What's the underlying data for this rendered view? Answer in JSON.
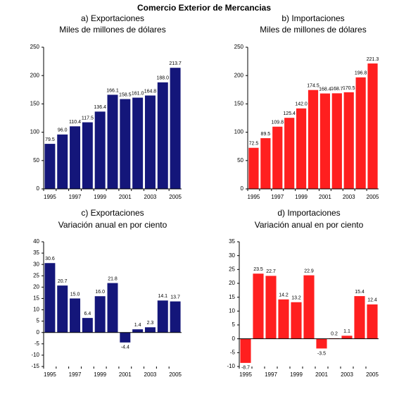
{
  "title": "Comercio Exterior de Mercancias",
  "chart_data": [
    {
      "type": "bar",
      "title": "a) Exportaciones",
      "subtitle": "Miles de millones de dólares",
      "categories": [
        "1995",
        null,
        "1997",
        null,
        "1999",
        null,
        "2001",
        null,
        "2003",
        null,
        "2005"
      ],
      "values": [
        79.5,
        96.0,
        110.4,
        117.5,
        136.4,
        166.1,
        158.5,
        161.0,
        164.8,
        188.0,
        213.7
      ],
      "value_labels": [
        "79.5",
        "96.0",
        "110.4",
        "117.5",
        "136.4",
        "166.1",
        "158.5",
        "161.0",
        "164.8",
        "188.0",
        "213.7"
      ],
      "color": "#14167a",
      "ylim": [
        0,
        250
      ],
      "yticks": [
        0,
        50,
        100,
        150,
        200,
        250
      ]
    },
    {
      "type": "bar",
      "title": "b) Importaciones",
      "subtitle": "Miles de millones de dólares",
      "categories": [
        "1995",
        null,
        "1997",
        null,
        "1999",
        null,
        "2001",
        null,
        "2003",
        null,
        "2005"
      ],
      "values": [
        72.5,
        89.5,
        109.8,
        125.4,
        142.0,
        174.5,
        168.4,
        168.7,
        170.5,
        196.8,
        221.3
      ],
      "value_labels": [
        "72.5",
        "89.5",
        "109.8",
        "125.4",
        "142.0",
        "174.5",
        "168.4",
        "168.7",
        "170.5",
        "196.8",
        "221.3"
      ],
      "color": "#ff1f1f",
      "ylim": [
        0,
        250
      ],
      "yticks": [
        0,
        50,
        100,
        150,
        200,
        250
      ]
    },
    {
      "type": "bar",
      "title": "c) Exportaciones",
      "subtitle": "Variación anual en por ciento",
      "categories": [
        "1995",
        null,
        "1997",
        null,
        "1999",
        null,
        "2001",
        null,
        "2003",
        null,
        "2005"
      ],
      "values": [
        30.6,
        20.7,
        15.0,
        6.4,
        16.0,
        21.8,
        -4.4,
        1.4,
        2.3,
        14.1,
        13.7
      ],
      "value_labels": [
        "30.6",
        "20.7",
        "15.0",
        "6.4",
        "16.0",
        "21.8",
        "-4.4",
        "1.4",
        "2.3",
        "14.1",
        "13.7"
      ],
      "color": "#14167a",
      "ylim": [
        -15,
        40
      ],
      "yticks": [
        -15,
        -10,
        -5,
        0,
        5,
        10,
        15,
        20,
        25,
        30,
        35,
        40
      ]
    },
    {
      "type": "bar",
      "title": "d) Importaciones",
      "subtitle": "Variación anual en por ciento",
      "categories": [
        "1995",
        null,
        "1997",
        null,
        "1999",
        null,
        "2001",
        null,
        "2003",
        null,
        "2005"
      ],
      "values": [
        -8.7,
        23.5,
        22.7,
        14.2,
        13.2,
        22.9,
        -3.5,
        0.2,
        1.1,
        15.4,
        12.4
      ],
      "value_labels": [
        "-8.7",
        "23.5",
        "22.7",
        "14.2",
        "13.2",
        "22.9",
        "-3.5",
        "0.2",
        "1.1",
        "15.4",
        "12.4"
      ],
      "color": "#ff1f1f",
      "ylim": [
        -10,
        35
      ],
      "yticks": [
        -10,
        -5,
        0,
        5,
        10,
        15,
        20,
        25,
        30,
        35
      ]
    }
  ]
}
